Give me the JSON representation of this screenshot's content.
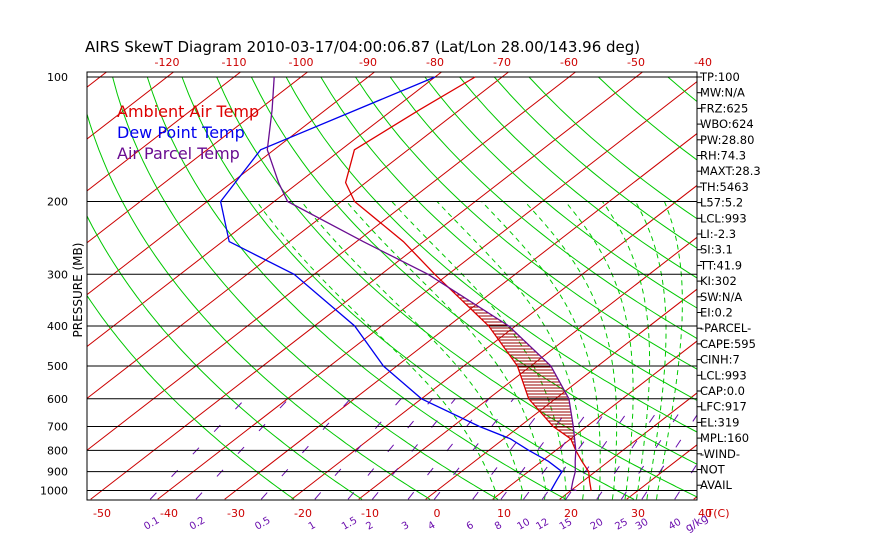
{
  "chart_data": {
    "type": "line",
    "title": "AIRS SkewT Diagram 2010-03-17/04:00:06.87 (Lat/Lon 28.00/143.96 deg)",
    "ylabel": "PRESSURE (MB)",
    "xlabel": "T(C)",
    "mixing_ratio_unit": "g/kg",
    "legend": [
      {
        "name": "Ambient Air Temp",
        "color": "#dd0000"
      },
      {
        "name": "Dew Point Temp",
        "color": "#0000ee"
      },
      {
        "name": "Air Parcel Temp",
        "color": "#6a0d91"
      }
    ],
    "pressure_levels": [
      100,
      200,
      300,
      400,
      500,
      600,
      700,
      800,
      900,
      1000
    ],
    "top_temp_ticks": [
      -120,
      -110,
      -100,
      -90,
      -80,
      -70,
      -60,
      -50,
      -40
    ],
    "bottom_temp_ticks": [
      -50,
      -40,
      -30,
      -20,
      -10,
      0,
      10,
      20,
      30,
      40
    ],
    "mixing_ratio_labels": [
      "0.1",
      "0.2",
      "0.5",
      "1",
      "1.5",
      "2",
      "3",
      "4",
      "6",
      "8",
      "10",
      "12",
      "15",
      "20",
      "25",
      "30",
      "40"
    ],
    "mixing_ratio_values": [
      0.1,
      0.2,
      0.5,
      1,
      1.5,
      2,
      3,
      4,
      6,
      8,
      10,
      12,
      15,
      20,
      25,
      30,
      40
    ],
    "isotherms_c": [
      -160,
      -150,
      -140,
      -130,
      -120,
      -110,
      -100,
      -90,
      -80,
      -70,
      -60,
      -50,
      -40,
      -30,
      -20,
      -10,
      0,
      10,
      20,
      30,
      40
    ],
    "dry_adiabats_theta_k": [
      250,
      260,
      270,
      280,
      290,
      300,
      310,
      320,
      330,
      340,
      350,
      360,
      370,
      380,
      390,
      400,
      420,
      440,
      460,
      480,
      500,
      520
    ],
    "moist_adiabats_thetae_k": [
      300,
      310,
      320,
      330,
      340,
      350,
      360,
      370,
      380,
      390,
      400
    ],
    "series": [
      {
        "name": "Ambient Air Temp",
        "pressure": [
          100,
          120,
          150,
          180,
          200,
          250,
          300,
          400,
          500,
          600,
          700,
          750,
          800,
          850,
          900,
          950,
          1000
        ],
        "temp_c": [
          -74,
          -76,
          -78,
          -73,
          -68,
          -53,
          -42,
          -24,
          -12,
          -4,
          5,
          10,
          13,
          16,
          19,
          21,
          23
        ]
      },
      {
        "name": "Dew Point Temp",
        "pressure": [
          100,
          150,
          200,
          250,
          300,
          400,
          500,
          600,
          700,
          750,
          800,
          850,
          900,
          950,
          1000
        ],
        "temp_c": [
          -80,
          -92,
          -88,
          -79,
          -63,
          -44,
          -32,
          -20,
          -6,
          1,
          6,
          11,
          15,
          16,
          17
        ]
      },
      {
        "name": "Air Parcel Temp",
        "pressure": [
          100,
          120,
          150,
          180,
          200,
          250,
          300,
          400,
          500,
          600,
          700,
          800,
          850,
          900,
          950,
          993,
          1000
        ],
        "temp_c": [
          -104,
          -98,
          -91,
          -83,
          -78,
          -59,
          -43,
          -21,
          -7,
          2,
          8,
          13,
          15,
          17,
          18.5,
          19.8,
          20.8
        ]
      }
    ],
    "cape_area": {
      "bottom_mb": 917,
      "top_mb": 319
    }
  },
  "indices": [
    "TP:100",
    "MW:N/A",
    "FRZ:625",
    "WBO:624",
    "PW:28.80",
    "RH:74.3",
    "MAXT:28.3",
    "TH:5463",
    "L57:5.2",
    "LCL:993",
    "LI:-2.3",
    "SI:3.1",
    "TT:41.9",
    "KI:302",
    "SW:N/A",
    "EI:0.2",
    "-PARCEL-",
    "CAPE:595",
    "CINH:7",
    "LCL:993",
    "CAP:0.0",
    "LFC:917",
    "EL:319",
    "MPL:160",
    "-WIND-",
    "NOT",
    "AVAIL"
  ],
  "colors": {
    "isotherm": "#cc0000",
    "dry_adiabat": "#00c800",
    "moist_adiabat": "#00c800",
    "mixing_ratio": "#6a0dad",
    "ambient": "#dd0000",
    "dewpoint": "#0000ee",
    "parcel": "#6a0d91",
    "hatch": "#990000",
    "top_axis_text": "#cc0000",
    "bottom_axis_text": "#cc0000",
    "mixing_axis_text": "#6a0dad"
  }
}
